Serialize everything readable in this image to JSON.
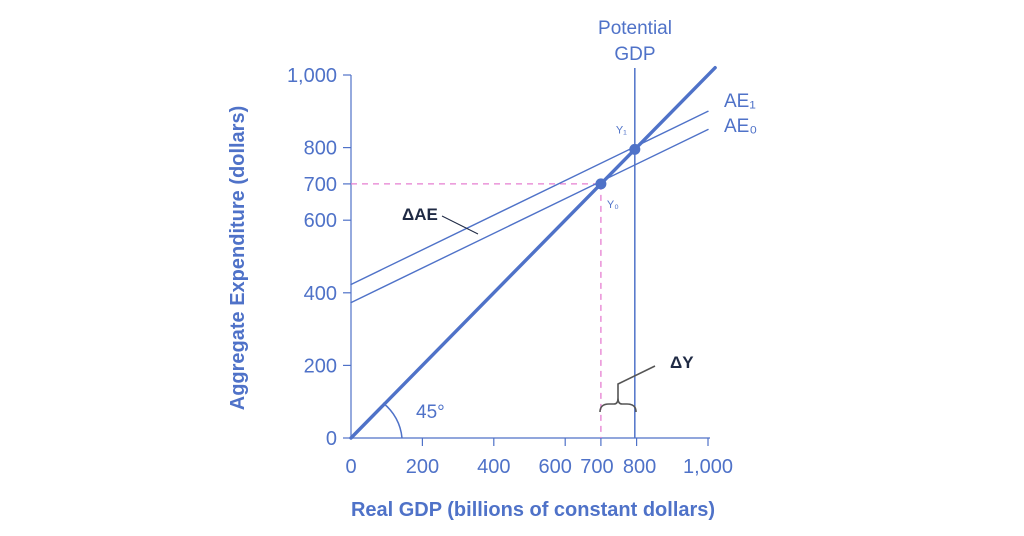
{
  "chart_data": {
    "type": "line",
    "title": "",
    "xlabel": "Real GDP (billions of constant dollars)",
    "ylabel": "Aggregate Expenditure (dollars)",
    "xlim": [
      0,
      1000
    ],
    "ylim": [
      0,
      1000
    ],
    "x_ticks": [
      "0",
      "200",
      "400",
      "600",
      "700",
      "800",
      "1,000"
    ],
    "x_tick_values": [
      0,
      200,
      400,
      600,
      700,
      800,
      1000
    ],
    "y_ticks": [
      "0",
      "200",
      "400",
      "600",
      "700",
      "800",
      "1,000"
    ],
    "y_tick_values": [
      0,
      200,
      400,
      600,
      700,
      800,
      1000
    ],
    "series": [
      {
        "name": "",
        "points": [
          [
            0,
            0
          ],
          [
            1020,
            1020
          ]
        ]
      },
      {
        "name": "AE₁",
        "points": [
          [
            0,
            423
          ],
          [
            1000,
            900
          ]
        ]
      },
      {
        "name": "AE₀",
        "points": [
          [
            0,
            373
          ],
          [
            1000,
            850
          ]
        ]
      }
    ],
    "points": [
      {
        "label": "Y₀",
        "x": 700,
        "y": 700
      },
      {
        "label": "Y₁",
        "x": 795,
        "y": 795
      }
    ],
    "vertical_line": {
      "label_line1": "Potential",
      "label_line2": "GDP",
      "x": 795
    },
    "dashed_guides": {
      "x": 700,
      "y": 700
    },
    "annotations": {
      "angle": "45°",
      "delta_ae": "ΔAE",
      "delta_y": "ΔY"
    },
    "colors": {
      "main": "#4f72c8",
      "dashed": "#e67fd0",
      "brace": "#555555"
    },
    "grid": false
  }
}
